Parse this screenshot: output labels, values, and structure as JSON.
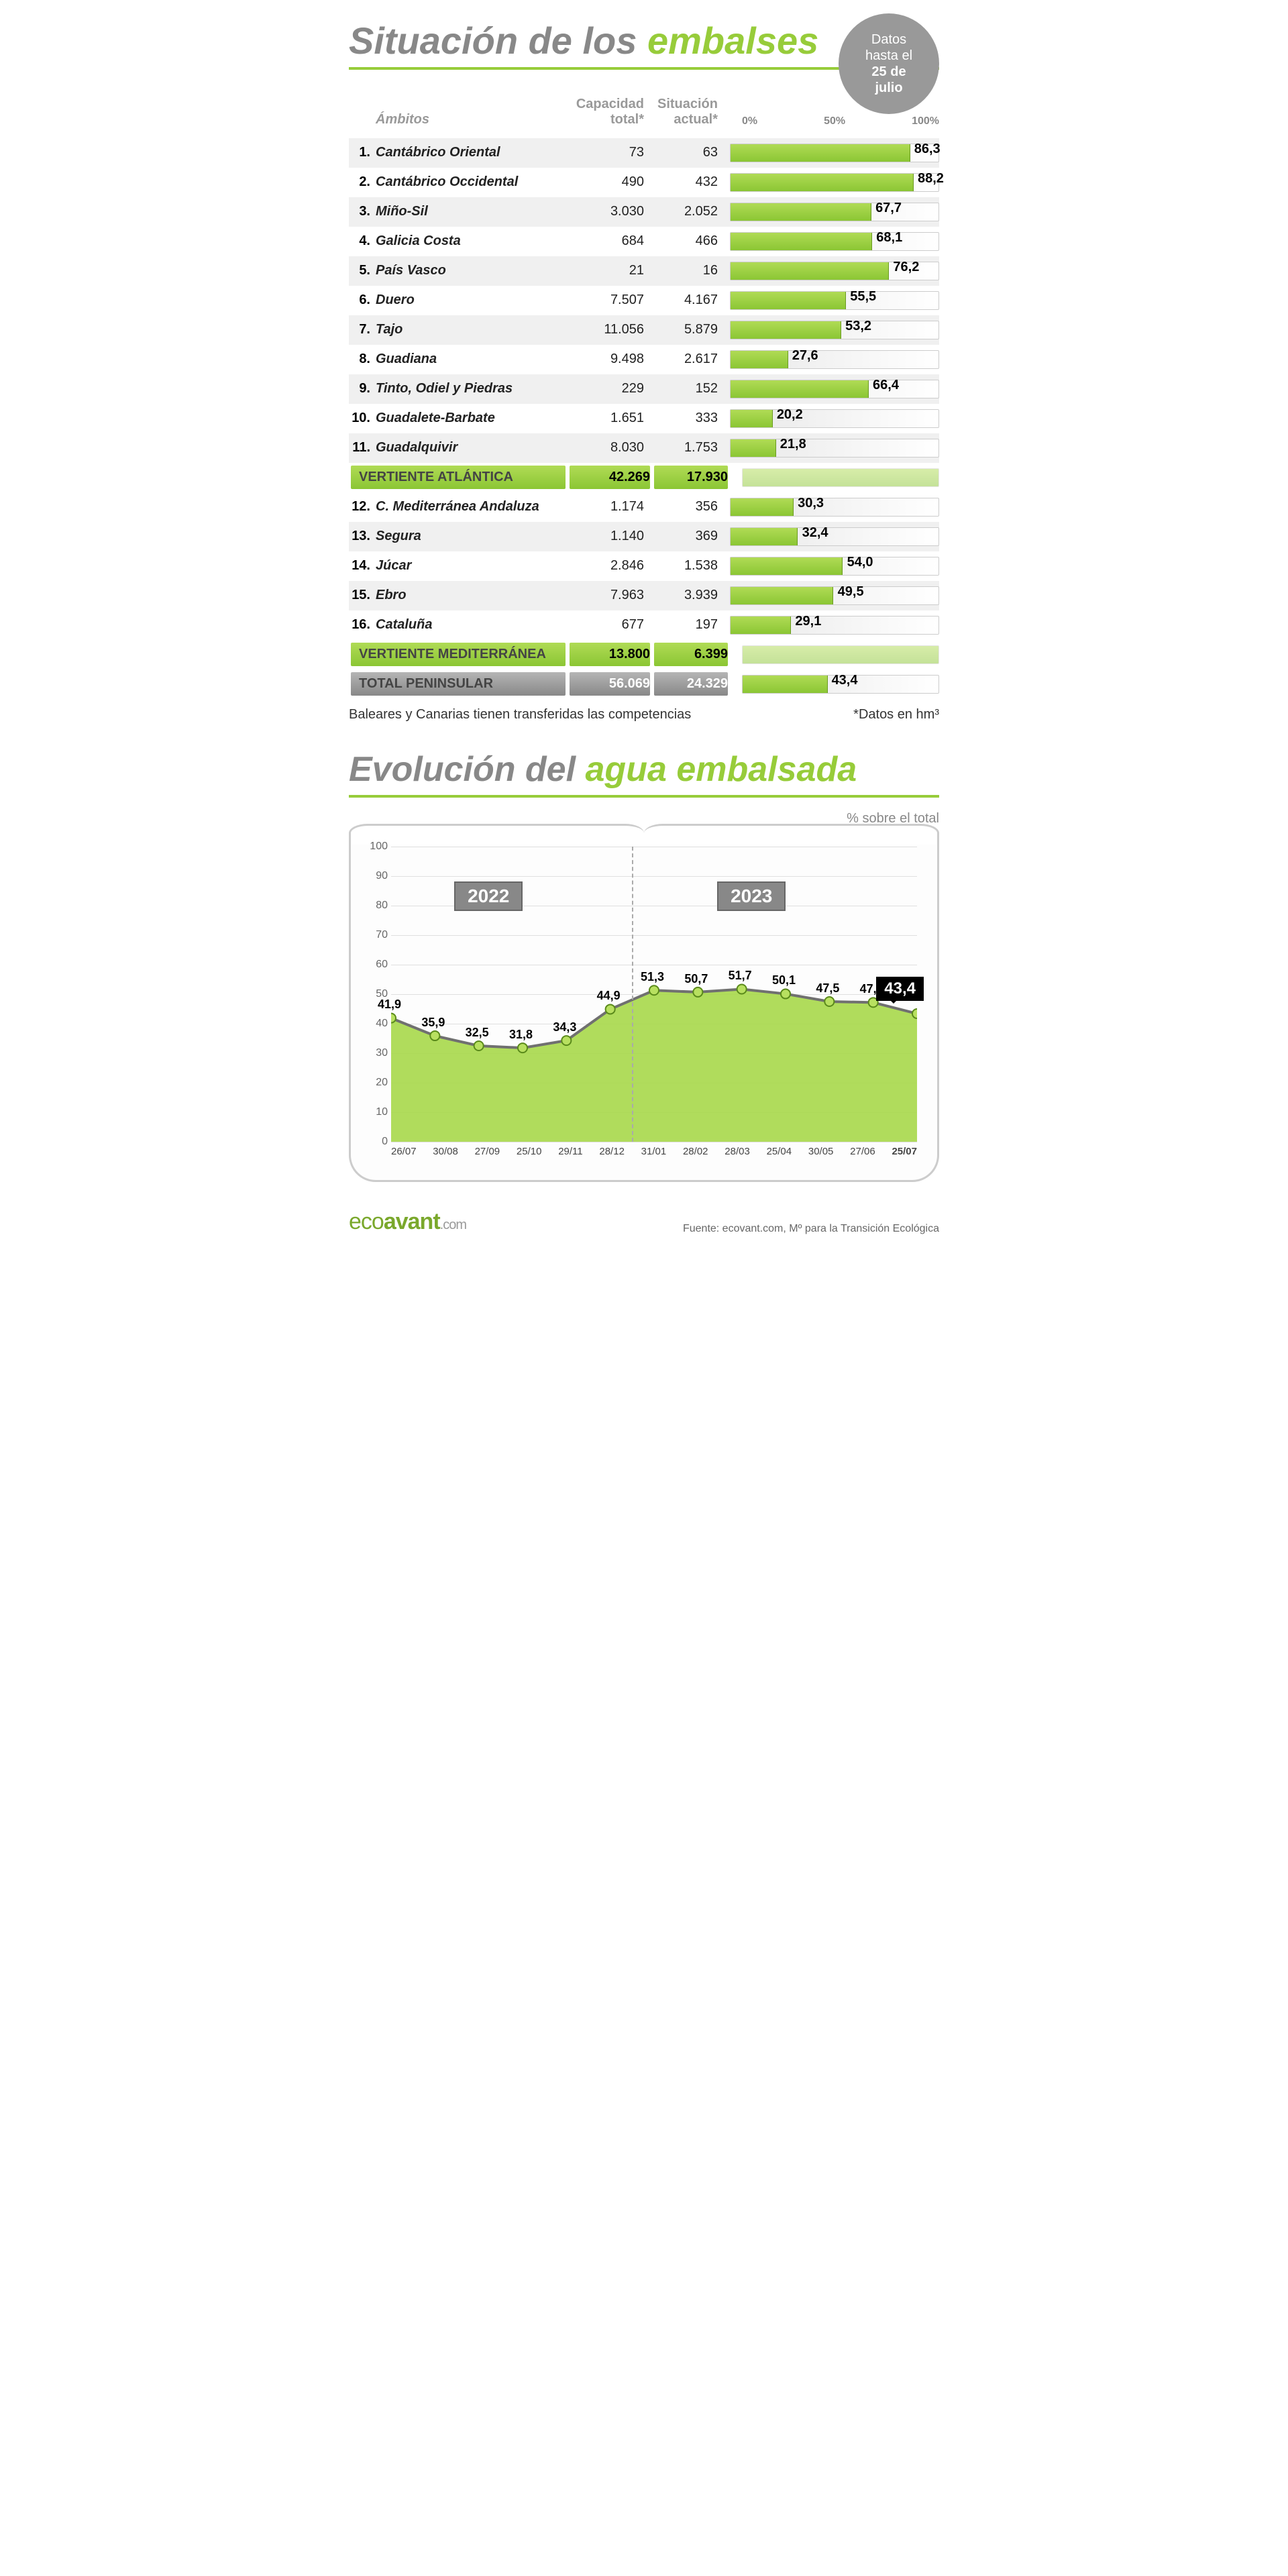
{
  "colors": {
    "accent": "#97cc3a",
    "accent_dark": "#8bc634",
    "grey_text": "#888888",
    "badge_bg": "#999999",
    "row_alt": "#f0f0f0",
    "bar_fill_top": "#b0db55",
    "bar_fill_bot": "#8bc634",
    "grid": "#e0e0e0",
    "total_bg": "#888888"
  },
  "header": {
    "title_grey": "Situación de los",
    "title_accent": "embalses",
    "badge_line1": "Datos",
    "badge_line2": "hasta el",
    "badge_line3": "25 de",
    "badge_line4": "julio"
  },
  "table": {
    "head_ambitos": "Ámbitos",
    "head_capacidad": "Capacidad total*",
    "head_actual": "Situación actual*",
    "scale_0": "0%",
    "scale_50": "50%",
    "scale_100": "100%",
    "rows": [
      {
        "n": "1.",
        "name": "Cantábrico Oriental",
        "cap": "73",
        "cur": "63",
        "pct": 86.3,
        "pct_txt": "86,3"
      },
      {
        "n": "2.",
        "name": "Cantábrico Occidental",
        "cap": "490",
        "cur": "432",
        "pct": 88.2,
        "pct_txt": "88,2"
      },
      {
        "n": "3.",
        "name": "Miño-Sil",
        "cap": "3.030",
        "cur": "2.052",
        "pct": 67.7,
        "pct_txt": "67,7"
      },
      {
        "n": "4.",
        "name": "Galicia Costa",
        "cap": "684",
        "cur": "466",
        "pct": 68.1,
        "pct_txt": "68,1"
      },
      {
        "n": "5.",
        "name": "País Vasco",
        "cap": "21",
        "cur": "16",
        "pct": 76.2,
        "pct_txt": "76,2"
      },
      {
        "n": "6.",
        "name": "Duero",
        "cap": "7.507",
        "cur": "4.167",
        "pct": 55.5,
        "pct_txt": "55,5"
      },
      {
        "n": "7.",
        "name": "Tajo",
        "cap": "11.056",
        "cur": "5.879",
        "pct": 53.2,
        "pct_txt": "53,2"
      },
      {
        "n": "8.",
        "name": "Guadiana",
        "cap": "9.498",
        "cur": "2.617",
        "pct": 27.6,
        "pct_txt": "27,6"
      },
      {
        "n": "9.",
        "name": "Tinto, Odiel y Piedras",
        "cap": "229",
        "cur": "152",
        "pct": 66.4,
        "pct_txt": "66,4"
      },
      {
        "n": "10.",
        "name": "Guadalete-Barbate",
        "cap": "1.651",
        "cur": "333",
        "pct": 20.2,
        "pct_txt": "20,2"
      },
      {
        "n": "11.",
        "name": "Guadalquivir",
        "cap": "8.030",
        "cur": "1.753",
        "pct": 21.8,
        "pct_txt": "21,8"
      }
    ],
    "summary1": {
      "label": "VERTIENTE ATLÁNTICA",
      "cap": "42.269",
      "cur": "17.930",
      "style": "green"
    },
    "rows2": [
      {
        "n": "12.",
        "name": "C. Mediterránea Andaluza",
        "cap": "1.174",
        "cur": "356",
        "pct": 30.3,
        "pct_txt": "30,3"
      },
      {
        "n": "13.",
        "name": "Segura",
        "cap": "1.140",
        "cur": "369",
        "pct": 32.4,
        "pct_txt": "32,4"
      },
      {
        "n": "14.",
        "name": "Júcar",
        "cap": "2.846",
        "cur": "1.538",
        "pct": 54.0,
        "pct_txt": "54,0"
      },
      {
        "n": "15.",
        "name": "Ebro",
        "cap": "7.963",
        "cur": "3.939",
        "pct": 49.5,
        "pct_txt": "49,5"
      },
      {
        "n": "16.",
        "name": "Cataluña",
        "cap": "677",
        "cur": "197",
        "pct": 29.1,
        "pct_txt": "29,1"
      }
    ],
    "summary2": {
      "label": "VERTIENTE MEDITERRÁNEA",
      "cap": "13.800",
      "cur": "6.399",
      "style": "green"
    },
    "total": {
      "label": "TOTAL PENINSULAR",
      "cap": "56.069",
      "cur": "24.329",
      "pct": 43.4,
      "pct_txt": "43,4",
      "style": "grey"
    },
    "footnote_left": "Baleares y Canarias tienen transferidas las competencias",
    "footnote_right": "*Datos en hm³"
  },
  "evolution": {
    "title_grey": "Evolución del",
    "title_accent": "agua embalsada",
    "subtitle": "% sobre el total",
    "y_ticks": [
      0,
      10,
      20,
      30,
      40,
      50,
      60,
      70,
      80,
      90,
      100
    ],
    "ylim": [
      0,
      100
    ],
    "year_2022": "2022",
    "year_2023": "2023",
    "year_divider_after_index": 5,
    "series": [
      {
        "x": "26/07",
        "v": 41.9,
        "label": "41,9"
      },
      {
        "x": "30/08",
        "v": 35.9,
        "label": "35,9"
      },
      {
        "x": "27/09",
        "v": 32.5,
        "label": "32,5"
      },
      {
        "x": "25/10",
        "v": 31.8,
        "label": "31,8"
      },
      {
        "x": "29/11",
        "v": 34.3,
        "label": "34,3"
      },
      {
        "x": "28/12",
        "v": 44.9,
        "label": "44,9"
      },
      {
        "x": "31/01",
        "v": 51.3,
        "label": "51,3"
      },
      {
        "x": "28/02",
        "v": 50.7,
        "label": "50,7"
      },
      {
        "x": "28/03",
        "v": 51.7,
        "label": "51,7"
      },
      {
        "x": "25/04",
        "v": 50.1,
        "label": "50,1"
      },
      {
        "x": "30/05",
        "v": 47.5,
        "label": "47,5"
      },
      {
        "x": "27/06",
        "v": 47.2,
        "label": "47,2"
      },
      {
        "x": "25/07",
        "v": 43.4,
        "label": "43,4",
        "final": true
      }
    ],
    "final_badge": "43,4",
    "area_fill": "#a7d84a",
    "line_color": "#707070",
    "marker_fill": "#b8e060",
    "marker_stroke": "#5a8a1a"
  },
  "footer": {
    "logo_a": "eco",
    "logo_b": "avant",
    "logo_c": ".com",
    "source": "Fuente: ecovant.com, Mº para la Transición Ecológica"
  }
}
